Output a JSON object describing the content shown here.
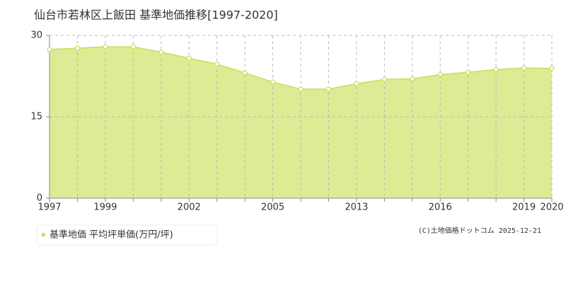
{
  "chart_data": {
    "type": "area",
    "title": "仙台市若林区上飯田 基準地価推移[1997-2020]",
    "categories": [
      "1997",
      null,
      "1999",
      null,
      null,
      "2002",
      null,
      null,
      "2005",
      null,
      null,
      "2013",
      null,
      null,
      "2016",
      null,
      null,
      "2019",
      "2020"
    ],
    "series": [
      {
        "name": "基準地価 平均坪単価(万円/坪)",
        "color": "#c5e05a",
        "values": [
          27.4,
          27.65,
          27.9,
          27.9,
          26.9,
          25.8,
          24.7,
          23.1,
          21.4,
          20.1,
          20.1,
          21.1,
          21.9,
          22.0,
          22.8,
          23.2,
          23.7,
          24.0,
          23.9
        ]
      }
    ],
    "ylim": [
      0,
      30
    ],
    "yticks": [
      0,
      15,
      30
    ],
    "grid": true,
    "legend": "bottom-left",
    "footer": "(C)土地価格ドットコム 2025-12-21"
  }
}
